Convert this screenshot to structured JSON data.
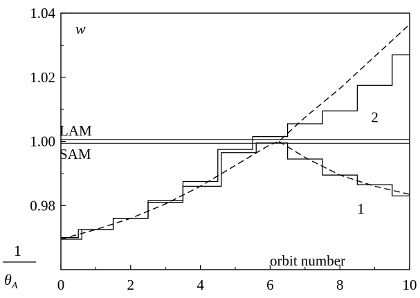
{
  "chart_data": {
    "type": "line",
    "title": "",
    "xlabel": "orbit number",
    "ylabel_fraction": {
      "numerator": "1",
      "denominator": "θA"
    },
    "panel_label": "w",
    "xlim": [
      0,
      10
    ],
    "ylim": [
      0.96,
      1.04
    ],
    "x_ticks": [
      0,
      2,
      4,
      6,
      8,
      10
    ],
    "x_tick_labels": [
      "0",
      "2",
      "4",
      "6",
      "8",
      "10"
    ],
    "y_ticks": [
      0.98,
      1.0,
      1.02,
      1.04
    ],
    "y_tick_labels": [
      "0.98",
      "1.00",
      "1.02",
      "1.04"
    ],
    "grid": false,
    "reference_lines": [
      {
        "label": "LAM",
        "y": 1.0006
      },
      {
        "label": "SAM",
        "y": 0.9994
      }
    ],
    "series": [
      {
        "name": "2",
        "style": "solid",
        "x": [
          0,
          0.5,
          0.5,
          1.5,
          1.5,
          2.5,
          2.5,
          3.5,
          3.5,
          4.5,
          4.5,
          5.5,
          5.5,
          6.5,
          6.5,
          7.5,
          7.5,
          8.5,
          8.5,
          9.5,
          9.5,
          10
        ],
        "y": [
          0.97,
          0.97,
          0.9725,
          0.9725,
          0.976,
          0.976,
          0.9815,
          0.9815,
          0.9875,
          0.9875,
          0.9975,
          0.9975,
          1.0015,
          1.0015,
          1.0055,
          1.0055,
          1.0095,
          1.0095,
          1.0175,
          1.0175,
          1.027,
          1.027
        ]
      },
      {
        "name": "1",
        "style": "solid",
        "x": [
          0,
          0.6,
          0.6,
          1.5,
          1.5,
          2.5,
          2.5,
          3.5,
          3.5,
          4.6,
          4.6,
          5.6,
          5.6,
          6.5,
          6.5,
          7.5,
          7.5,
          8.5,
          8.5,
          9.5,
          9.5,
          10
        ],
        "y": [
          0.9695,
          0.9695,
          0.9725,
          0.9725,
          0.976,
          0.976,
          0.981,
          0.981,
          0.986,
          0.986,
          0.9965,
          0.9965,
          0.9995,
          0.9995,
          0.9945,
          0.9945,
          0.9895,
          0.9895,
          0.9865,
          0.9865,
          0.983,
          0.983
        ]
      },
      {
        "name": "",
        "style": "dashed",
        "x": [
          0,
          1,
          2,
          3,
          4,
          5,
          6,
          6.25,
          7,
          8,
          9,
          10
        ],
        "y": [
          0.9695,
          0.9725,
          0.976,
          0.9805,
          0.986,
          0.9925,
          0.999,
          1.0,
          1.0075,
          1.0165,
          1.0265,
          1.0365
        ]
      },
      {
        "name": "",
        "style": "dashed",
        "x": [
          6.25,
          7,
          8,
          9,
          10
        ],
        "y": [
          1.0,
          0.995,
          0.9895,
          0.986,
          0.9835
        ]
      }
    ],
    "series_labels": [
      {
        "text": "2",
        "x": 9.0,
        "y": 1.006
      },
      {
        "text": "1",
        "x": 8.6,
        "y": 0.9775
      }
    ]
  }
}
